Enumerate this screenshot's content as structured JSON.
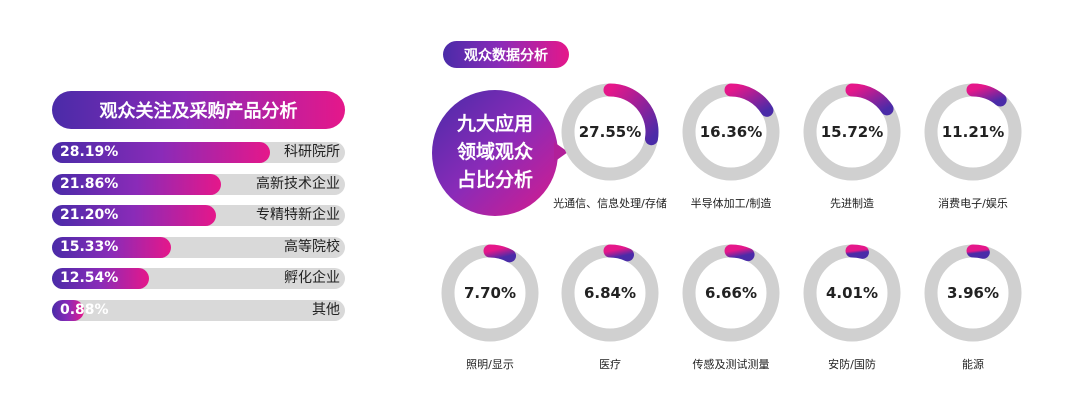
{
  "chart_data": [
    {
      "type": "bar",
      "title": "观众关注及采购产品分析",
      "categories": [
        "科研院所",
        "高新技术企业",
        "专精特新企业",
        "高等院校",
        "孵化企业",
        "其他"
      ],
      "values": [
        28.19,
        21.86,
        21.2,
        15.33,
        12.54,
        0.88
      ],
      "value_labels": [
        "28.19%",
        "21.86%",
        "21.20%",
        "15.33%",
        "12.54%",
        "0.88%"
      ],
      "full_scale": 28.19,
      "orientation": "horizontal",
      "colors": [
        "#4a2ba8",
        "#e5178a",
        "#d9d9d9"
      ]
    },
    {
      "type": "pie",
      "style": "donut",
      "title": "观众数据分析",
      "center_label": [
        "九大应用",
        "领域观众",
        "占比分析"
      ],
      "categories": [
        "光通信、信息处理/存储",
        "半导体加工/制造",
        "先进制造",
        "消费电子/娱乐",
        "照明/显示",
        "医疗",
        "传感及测试测量",
        "安防/国防",
        "能源"
      ],
      "values": [
        27.55,
        16.36,
        15.72,
        11.21,
        7.7,
        6.84,
        6.66,
        4.01,
        3.96
      ],
      "value_labels": [
        "27.55%",
        "16.36%",
        "15.72%",
        "11.21%",
        "7.70%",
        "6.84%",
        "6.66%",
        "4.01%",
        "3.96%"
      ],
      "colors": [
        "#4a2ba8",
        "#e5178a",
        "#d0d0d0"
      ]
    }
  ]
}
